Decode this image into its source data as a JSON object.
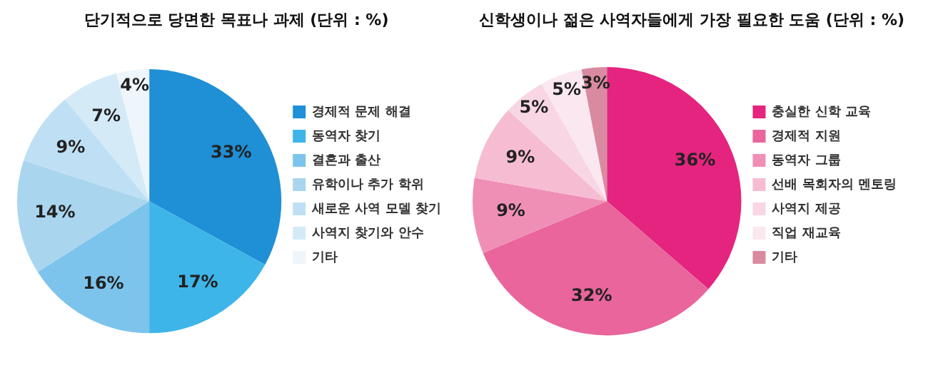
{
  "chart_data": [
    {
      "type": "pie",
      "title": "단기적으로 당면한 목표나 과제 (단위 : %)",
      "categories": [
        "경제적 문제 해결",
        "동역자 찾기",
        "결혼과 출산",
        "유학이나 추가 학위",
        "새로운 사역 모델 찾기",
        "사역지 찾기와 안수",
        "기타"
      ],
      "values": [
        33,
        17,
        16,
        14,
        9,
        7,
        4
      ],
      "colors": [
        "#1f8fd6",
        "#3db5e8",
        "#7cc4ec",
        "#a9d5ef",
        "#bfe0f4",
        "#d4eaf7",
        "#eef5fb"
      ],
      "value_labels": [
        "33%",
        "17%",
        "16%",
        "14%",
        "9%",
        "7%",
        "4%"
      ],
      "legend": "right"
    },
    {
      "type": "pie",
      "title": "신학생이나 젊은 사역자들에게 가장 필요한 도움 (단위 : %)",
      "categories": [
        "충실한 신학 교육",
        "경제적 지원",
        "동역자 그룹",
        "선배 목회자의 멘토링",
        "사역지 제공",
        "직업 재교육",
        "기타"
      ],
      "values": [
        36,
        32,
        9,
        9,
        5,
        5,
        3
      ],
      "colors": [
        "#e4247f",
        "#e9659c",
        "#f08fb6",
        "#f6bcd2",
        "#f9d6e4",
        "#fbe7ef",
        "#d98aa0"
      ],
      "value_labels": [
        "36%",
        "32%",
        "9%",
        "9%",
        "5%",
        "5%",
        "3%"
      ],
      "legend": "right"
    }
  ]
}
